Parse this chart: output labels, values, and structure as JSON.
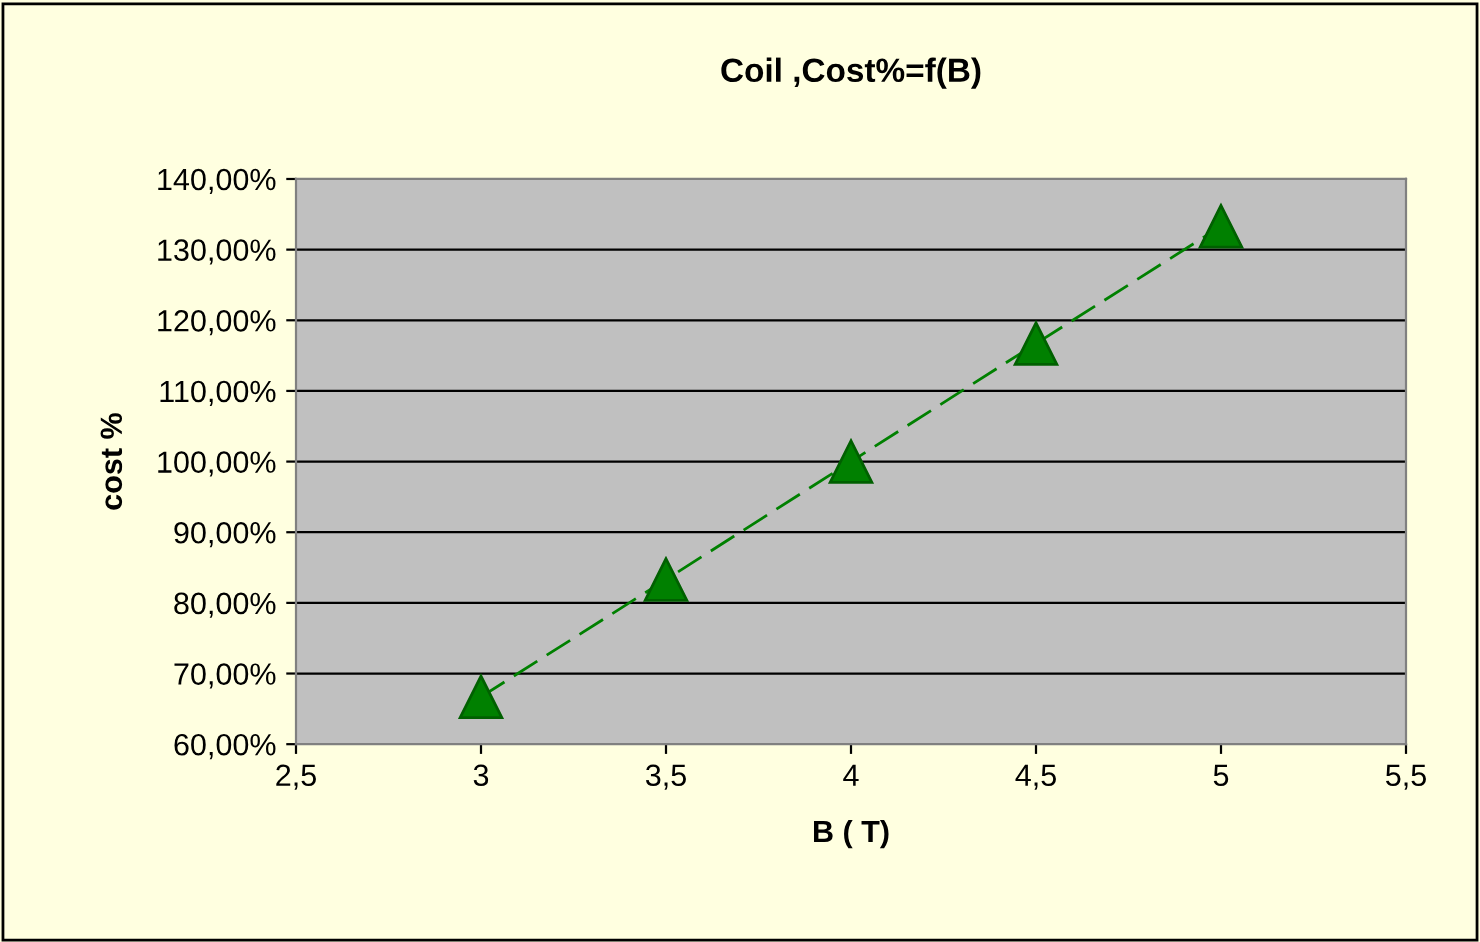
{
  "chart_data": {
    "type": "line",
    "title": "Coil ,Cost%=f(B)",
    "xlabel": "B ( T)",
    "ylabel": "cost %",
    "x": [
      3,
      3.5,
      4,
      4.5,
      5
    ],
    "series": [
      {
        "color": "#008000",
        "values": [
          66.7,
          83.3,
          100,
          116.7,
          133.3
        ]
      }
    ],
    "marker": "triangle",
    "line_style": "dashed",
    "grid": "y",
    "legend": false,
    "xlim": [
      2.5,
      5.5
    ],
    "xticks": [
      {
        "value": 2.5,
        "label": "2,5"
      },
      3,
      {
        "value": 3.5,
        "label": "3,5"
      },
      4,
      {
        "value": 4.5,
        "label": "4,5"
      },
      5,
      {
        "value": 5.5,
        "label": "5,5"
      }
    ],
    "ylim": [
      60,
      140
    ],
    "yticks": [
      {
        "value": 60,
        "label": "60,00%"
      },
      {
        "value": 70,
        "label": "70,00%"
      },
      {
        "value": 80,
        "label": "80,00%"
      },
      {
        "value": 90,
        "label": "90,00%"
      },
      {
        "value": 100,
        "label": "100,00%"
      },
      {
        "value": 110,
        "label": "110,00%"
      },
      {
        "value": 120,
        "label": "120,00%"
      },
      {
        "value": 130,
        "label": "130,00%"
      },
      {
        "value": 140,
        "label": "140,00%"
      }
    ]
  }
}
